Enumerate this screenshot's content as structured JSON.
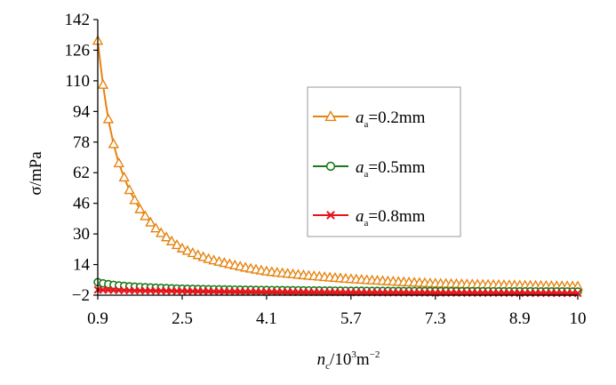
{
  "chart_data": {
    "type": "line",
    "xlabel": {
      "base": "n",
      "sub": "c",
      "rest": "/10",
      "sup1": "3",
      "unit": "m",
      "sup2": "−2"
    },
    "ylabel": "σ/mPa",
    "xlim": [
      0.9,
      10
    ],
    "ylim": [
      -2,
      142
    ],
    "xticks": [
      "0.9",
      "2.5",
      "4.1",
      "5.7",
      "7.3",
      "8.9",
      "10"
    ],
    "xtick_values": [
      0.9,
      2.5,
      4.1,
      5.7,
      7.3,
      8.9,
      10
    ],
    "yticks": [
      "−2",
      "14",
      "30",
      "46",
      "62",
      "78",
      "94",
      "110",
      "126",
      "142"
    ],
    "ytick_values": [
      -2,
      14,
      30,
      46,
      62,
      78,
      94,
      110,
      126,
      142
    ],
    "legend_position": "center-right",
    "series": [
      {
        "name": "=0.2mm",
        "label_var": "a",
        "label_sub": "a",
        "color": "#E6830F",
        "marker": "triangle",
        "x": [
          0.9,
          1.0,
          1.1,
          1.2,
          1.3,
          1.5,
          1.7,
          2.0,
          2.5,
          3.0,
          4.1,
          5.7,
          7.3,
          8.9,
          10
        ],
        "y": [
          131,
          108,
          90,
          77,
          67,
          53,
          43,
          33,
          22.5,
          17,
          10.5,
          6.5,
          4.2,
          3.2,
          2.7
        ]
      },
      {
        "name": "=0.5mm",
        "label_var": "a",
        "label_sub": "a",
        "color": "#1B7A1B",
        "marker": "circle",
        "x": [
          0.9,
          1.0,
          1.2,
          1.5,
          2.0,
          2.5,
          4.1,
          5.7,
          7.3,
          8.9,
          10
        ],
        "y": [
          4.8,
          4.2,
          3.4,
          2.6,
          1.9,
          1.4,
          0.7,
          0.3,
          0.1,
          0,
          -0.1
        ]
      },
      {
        "name": "=0.8mm",
        "label_var": "a",
        "label_sub": "a",
        "color": "#E8141C",
        "marker": "cross",
        "x": [
          0.9,
          1.5,
          2.5,
          4.1,
          5.7,
          7.3,
          8.9,
          10
        ],
        "y": [
          0.8,
          0.4,
          0.1,
          -0.3,
          -0.6,
          -0.8,
          -0.9,
          -1.0
        ]
      }
    ]
  }
}
